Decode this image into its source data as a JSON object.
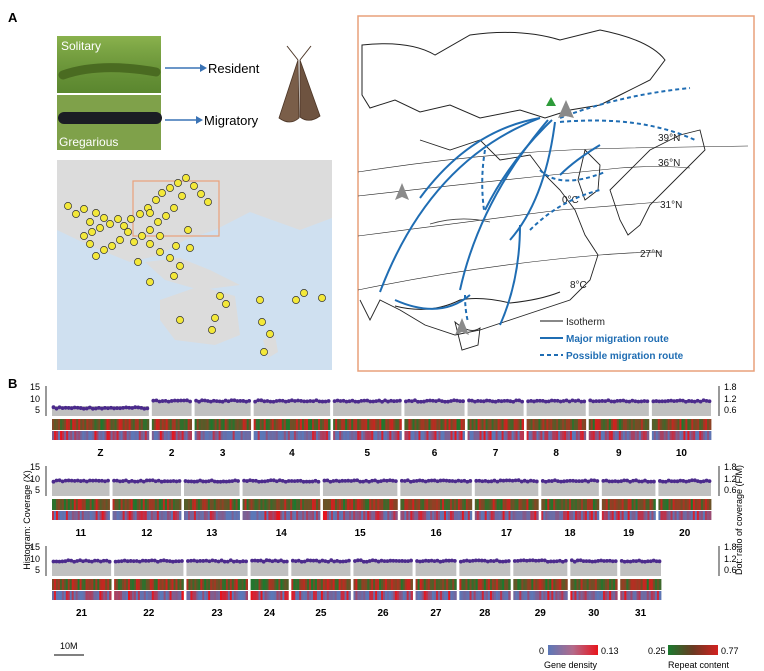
{
  "panels": {
    "a": "A",
    "b": "B"
  },
  "panelA": {
    "photo_labels": {
      "solitary": "Solitary",
      "gregarious": "Gregarious"
    },
    "arrow_labels": {
      "resident": "Resident",
      "migratory": "Migratory"
    },
    "isotherms": [
      "39°N",
      "36°N",
      "0°C",
      "31°N",
      "27°N",
      "8°C"
    ],
    "legend": {
      "isotherm": "Isotherm",
      "major": "Major migration route",
      "possible": "Possible migration route"
    },
    "colors": {
      "route": "#1f6db3",
      "map_box": "#e8a07a",
      "dot": "#f3e83a",
      "triangle": "#2d9b3a"
    }
  },
  "panelB": {
    "y_axis_left": "Histogram:  Coverage (X)",
    "y_axis_right": "Dot: ratio of coverage (F/M)",
    "left_ticks": [
      "15",
      "10",
      "5"
    ],
    "right_ticks": [
      "1.8",
      "1.2",
      "0.6"
    ],
    "rows": [
      [
        "Z",
        "2",
        "3",
        "4",
        "5",
        "6",
        "7",
        "8",
        "9",
        "10"
      ],
      [
        "11",
        "12",
        "13",
        "14",
        "15",
        "16",
        "17",
        "18",
        "19",
        "20"
      ],
      [
        "21",
        "22",
        "23",
        "24",
        "25",
        "26",
        "27",
        "28",
        "29",
        "30",
        "31"
      ]
    ],
    "scale_bar": "10M",
    "legend": {
      "gene_density": {
        "label": "Gene density",
        "min": "0",
        "max": "0.13"
      },
      "repeat_content": {
        "label": "Repeat content",
        "min": "0.25",
        "max": "0.77"
      }
    },
    "colors": {
      "histogram": "#c0c0c0",
      "dot": "#4b2a8c",
      "gene_low": "#5b78b8",
      "gene_high": "#e8141c",
      "repeat_low": "#1a7a2e",
      "repeat_high": "#d3201f"
    }
  }
}
